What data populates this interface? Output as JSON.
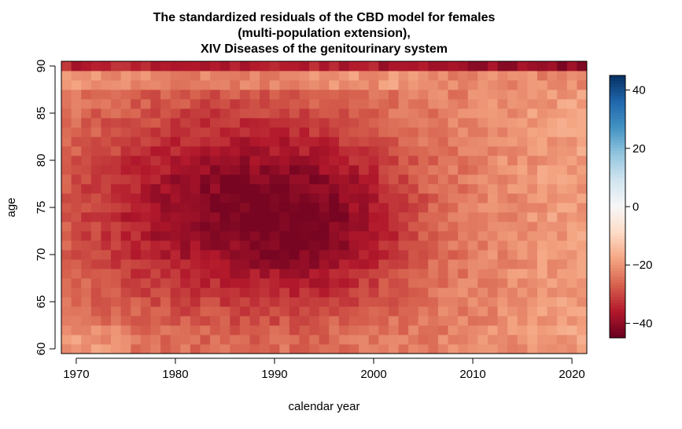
{
  "chart_data": {
    "type": "heatmap",
    "title_lines": [
      "The standardized residuals of the CBD model for females",
      "(multi-population extension),",
      "XIV Diseases of the genitourinary system"
    ],
    "xlabel": "calendar year",
    "ylabel": "age",
    "x_range": [
      1969,
      2021
    ],
    "y_range": [
      60,
      90
    ],
    "x_ticks": [
      1970,
      1980,
      1990,
      2000,
      2010,
      2020
    ],
    "y_ticks": [
      60,
      65,
      70,
      75,
      80,
      85,
      90
    ],
    "colorbar": {
      "range": [
        -45,
        45
      ],
      "ticks": [
        40,
        20,
        0,
        -20,
        -40
      ],
      "palette": [
        "#67001F",
        "#B2182B",
        "#D6604D",
        "#F4A582",
        "#FDDBC7",
        "#F7F7F7",
        "#D1E5F0",
        "#92C5DE",
        "#4393C3",
        "#2166AC",
        "#053061"
      ]
    },
    "description_of_values": "residuals range roughly from -42 to -14; a light diagonal band (~-15) runs from (1977,60) to (2007,90); darkest (~-42) around 1984-1986 at ages 72-78 and at age 90 in the 2010s-2020s",
    "pattern": {
      "diagonal_cohort_value": -15,
      "min_value": -42,
      "typical_value": -28
    }
  }
}
